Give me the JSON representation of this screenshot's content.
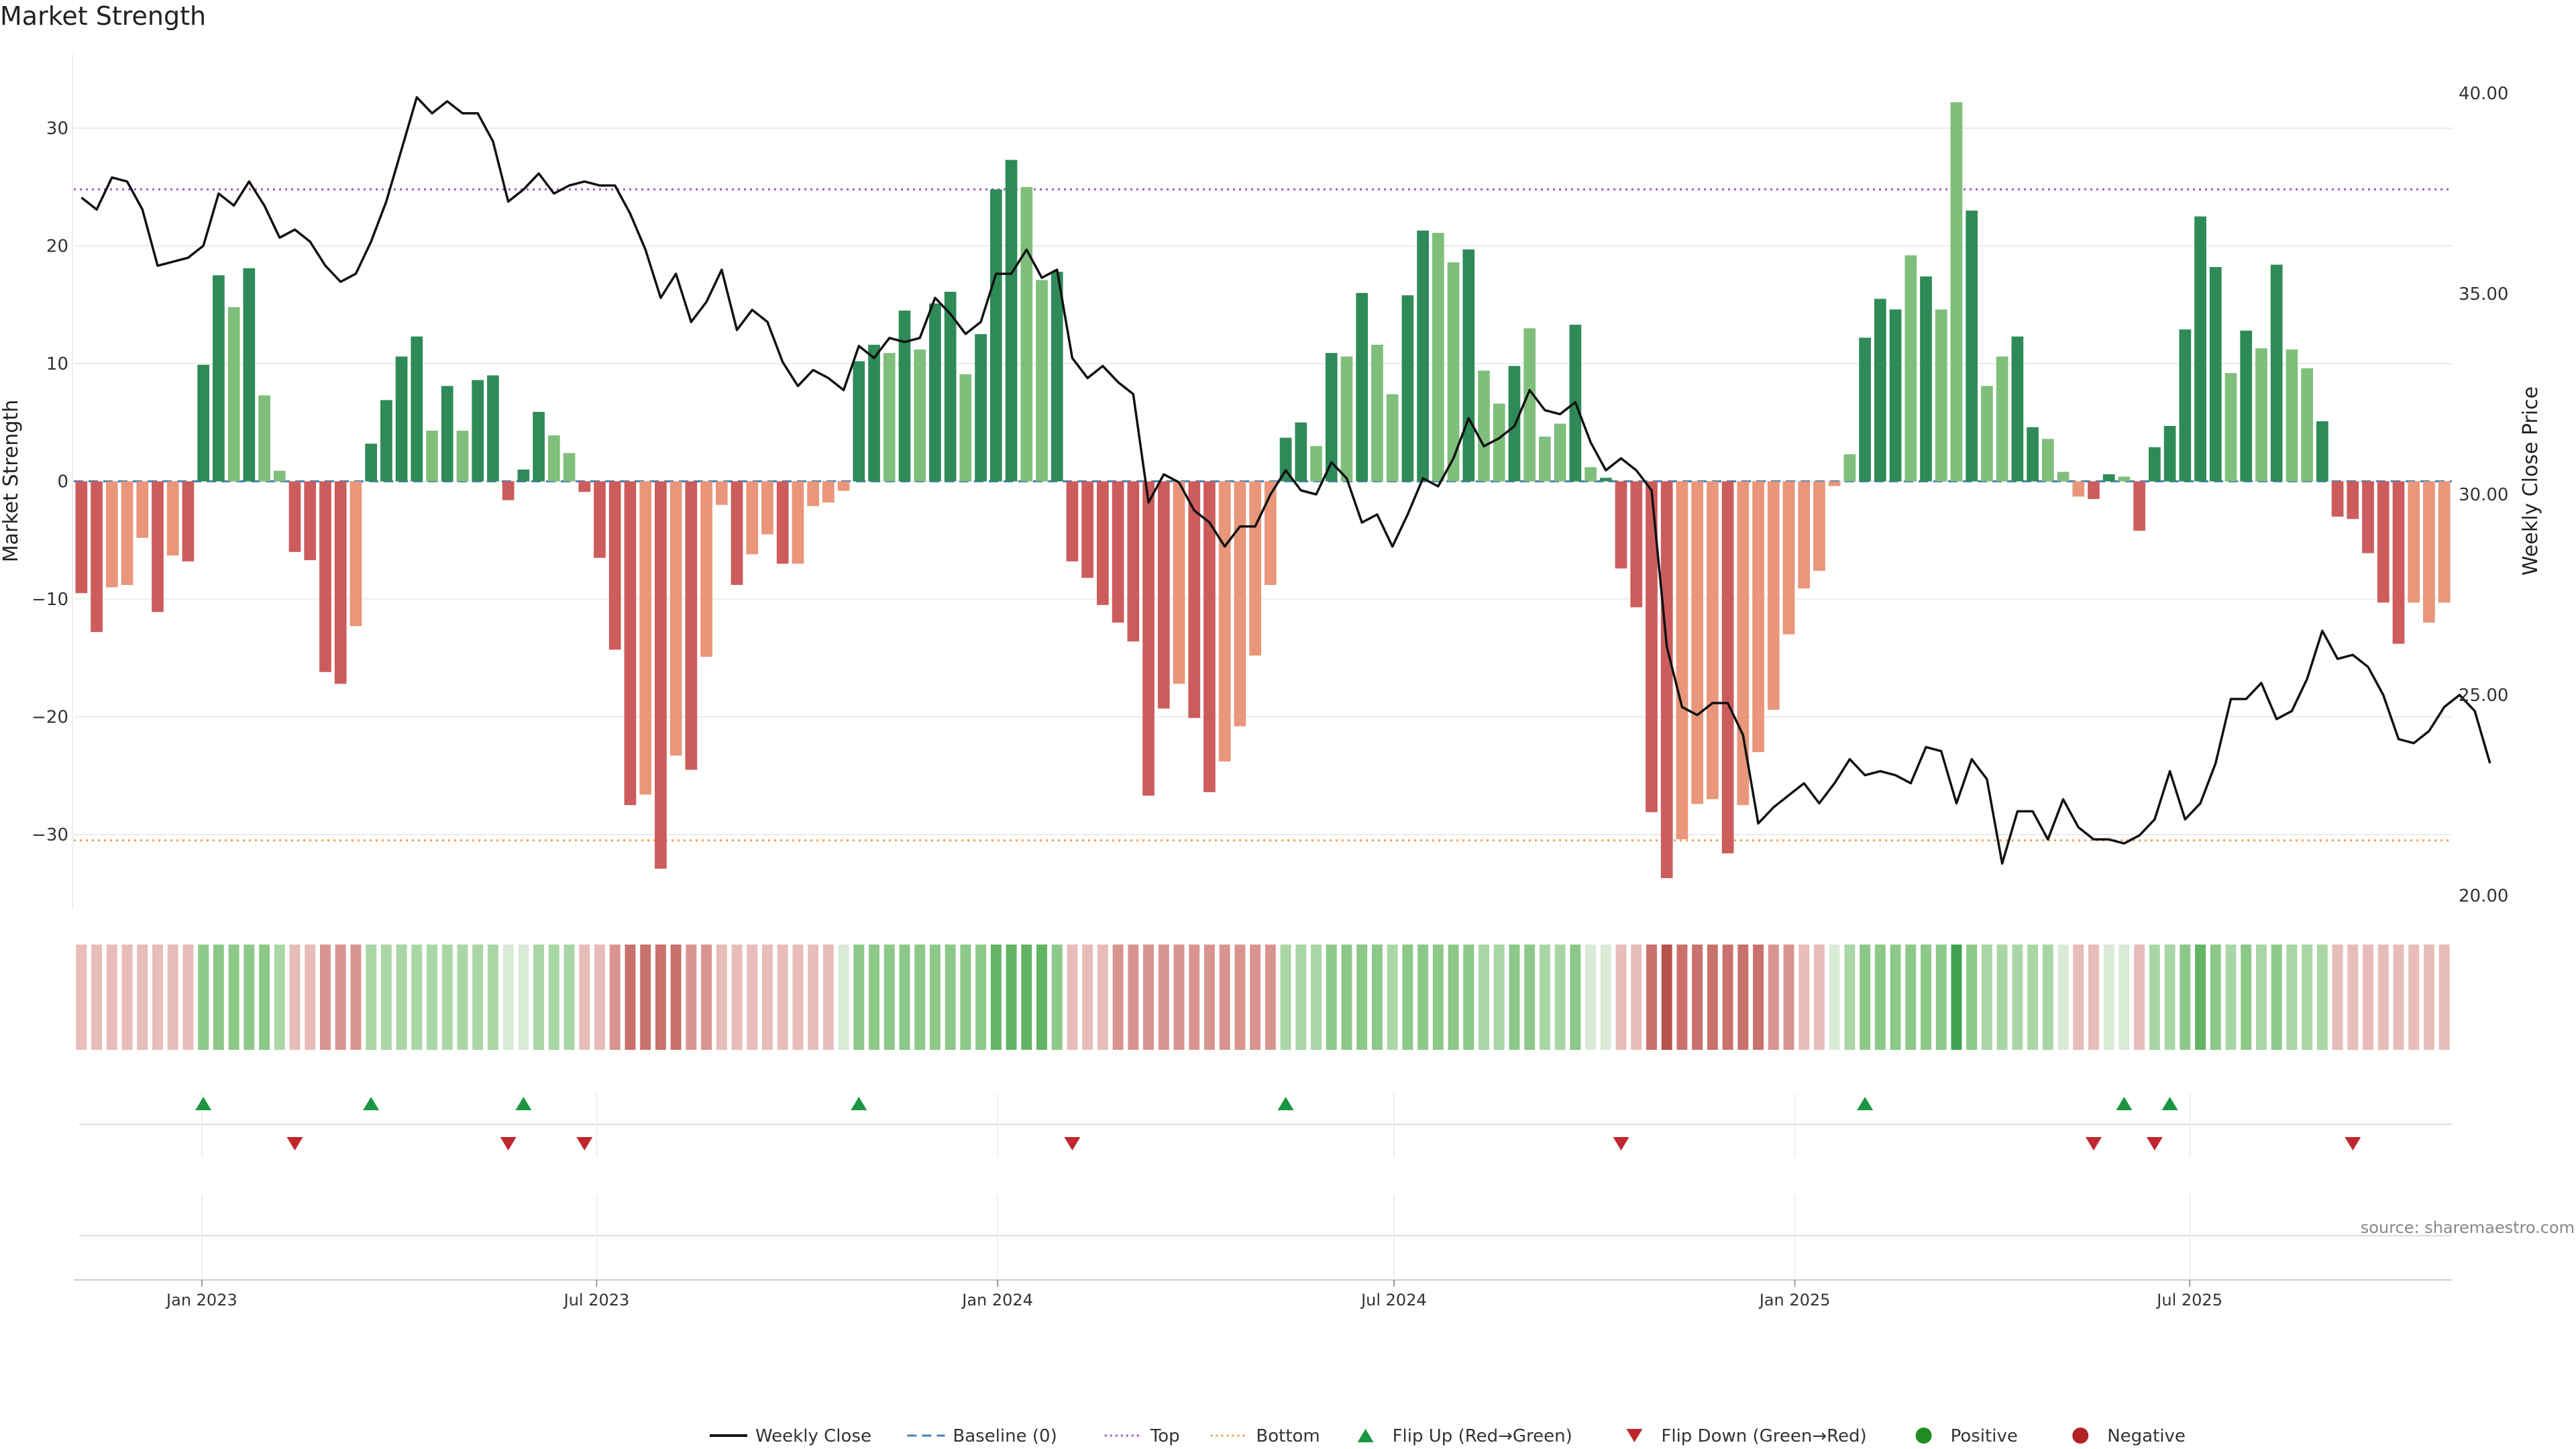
{
  "title": "Market Strength",
  "source_note": "source: sharemaestro.com",
  "colors": {
    "pos_dark": "#2e8b57",
    "pos_light": "#7fbf7b",
    "neg_dark": "#cd5c5c",
    "neg_light": "#e9967a",
    "line": "#111111",
    "top_line": "#9b59b6",
    "bottom_line": "#f0a04b",
    "baseline": "#4682b4",
    "flip_up": "#1a9641",
    "flip_down": "#c0272d",
    "grid": "#ebebeb",
    "axis_text": "#333333"
  },
  "chart_data": {
    "type": "bar",
    "title": "Market Strength",
    "ylabel": "Market Strength",
    "y2label": "Weekly Close Price",
    "ylim": [
      -36.5,
      36.5
    ],
    "y2lim": [
      19.6,
      41.0
    ],
    "yticks": [
      -30,
      -20,
      -10,
      0,
      10,
      20,
      30
    ],
    "y2ticks": [
      20.0,
      25.0,
      30.0,
      35.0,
      40.0
    ],
    "top_level": 24.8,
    "bottom_level": -30.5,
    "x_tick_labels": [
      "Jan 2023",
      "Jul 2023",
      "Jan 2024",
      "Jul 2024",
      "Jan 2025",
      "Jul 2025"
    ],
    "x_tick_weeks": [
      8.4,
      34.3,
      60.6,
      86.6,
      112.9,
      138.8
    ],
    "bar_values": [
      -9.5,
      -12.8,
      -9.0,
      -8.8,
      -4.8,
      -11.1,
      -6.3,
      -6.8,
      9.9,
      17.5,
      14.8,
      18.1,
      7.3,
      0.9,
      -6.0,
      -6.7,
      -16.2,
      -17.2,
      -12.3,
      3.2,
      6.9,
      10.6,
      12.3,
      4.3,
      8.1,
      4.3,
      8.6,
      9.0,
      -1.6,
      1.0,
      5.9,
      3.9,
      2.4,
      -0.9,
      -6.5,
      -14.3,
      -27.5,
      -26.6,
      -32.9,
      -23.3,
      -24.5,
      -14.9,
      -2.0,
      -8.8,
      -6.2,
      -4.5,
      -7.0,
      -7.0,
      -2.1,
      -1.8,
      -0.8,
      10.2,
      11.6,
      10.9,
      14.5,
      11.2,
      15.1,
      16.1,
      9.1,
      12.5,
      24.8,
      27.3,
      25.0,
      17.1,
      17.8,
      -6.8,
      -8.2,
      -10.5,
      -12.0,
      -13.6,
      -26.7,
      -19.3,
      -17.2,
      -20.1,
      -26.4,
      -23.8,
      -20.8,
      -14.8,
      -8.8,
      3.7,
      5.0,
      3.0,
      10.9,
      10.6,
      16.0,
      11.6,
      7.4,
      15.8,
      21.3,
      21.1,
      18.6,
      19.7,
      9.4,
      6.6,
      9.8,
      13.0,
      3.8,
      4.9,
      13.3,
      1.2,
      0.3,
      -7.4,
      -10.7,
      -28.1,
      -33.7,
      -30.4,
      -27.4,
      -27.0,
      -31.6,
      -27.5,
      -23.0,
      -19.4,
      -13.0,
      -9.1,
      -7.6,
      -0.4,
      2.3,
      12.2,
      15.5,
      14.6,
      19.2,
      17.4,
      14.6,
      32.2,
      23.0,
      8.1,
      10.6,
      12.3,
      4.6,
      3.6,
      0.8,
      -1.3,
      -1.5,
      0.6,
      0.4,
      -4.2,
      2.9,
      4.7,
      12.9,
      22.5,
      18.2,
      9.2,
      12.8,
      11.3,
      18.4,
      11.2,
      9.6,
      5.1,
      -3.0,
      -3.2,
      -6.1,
      -10.3,
      -13.8,
      -10.3,
      -12.0,
      -10.3
    ],
    "bar_shades": [
      "d",
      "d",
      "l",
      "l",
      "l",
      "d",
      "l",
      "d",
      "d",
      "d",
      "l",
      "d",
      "l",
      "l",
      "d",
      "d",
      "d",
      "d",
      "l",
      "d",
      "d",
      "d",
      "d",
      "l",
      "d",
      "l",
      "d",
      "d",
      "d",
      "d",
      "d",
      "l",
      "l",
      "d",
      "d",
      "d",
      "d",
      "l",
      "d",
      "l",
      "d",
      "l",
      "l",
      "d",
      "l",
      "l",
      "d",
      "l",
      "l",
      "l",
      "l",
      "d",
      "d",
      "l",
      "d",
      "l",
      "d",
      "d",
      "l",
      "d",
      "d",
      "d",
      "l",
      "l",
      "d",
      "d",
      "d",
      "d",
      "d",
      "d",
      "d",
      "d",
      "l",
      "d",
      "d",
      "l",
      "l",
      "l",
      "l",
      "d",
      "d",
      "l",
      "d",
      "l",
      "d",
      "l",
      "l",
      "d",
      "d",
      "l",
      "l",
      "d",
      "l",
      "l",
      "d",
      "l",
      "l",
      "l",
      "d",
      "l",
      "d",
      "d",
      "d",
      "d",
      "d",
      "l",
      "l",
      "l",
      "d",
      "l",
      "l",
      "l",
      "l",
      "l",
      "l",
      "l",
      "l",
      "d",
      "d",
      "d",
      "l",
      "d",
      "l",
      "l",
      "d",
      "l",
      "l",
      "d",
      "d",
      "l",
      "l",
      "l",
      "d",
      "d",
      "l",
      "d",
      "d",
      "d",
      "d",
      "d",
      "d",
      "l",
      "d",
      "l",
      "d",
      "l",
      "l",
      "d",
      "d",
      "d",
      "d",
      "d",
      "d",
      "l"
    ],
    "close_series": {
      "name": "Weekly Close",
      "values": [
        37.4,
        37.1,
        37.9,
        37.8,
        37.1,
        35.7,
        35.8,
        35.9,
        36.2,
        37.5,
        37.2,
        37.8,
        37.2,
        36.4,
        36.6,
        36.3,
        35.7,
        35.3,
        35.5,
        36.3,
        37.3,
        38.6,
        39.9,
        39.5,
        39.8,
        39.5,
        39.5,
        38.8,
        37.3,
        37.6,
        38.0,
        37.5,
        37.7,
        37.8,
        37.7,
        37.7,
        37.0,
        36.1,
        34.9,
        35.5,
        34.3,
        34.8,
        35.6,
        34.1,
        34.6,
        34.3,
        33.3,
        32.7,
        33.1,
        32.9,
        32.6,
        33.7,
        33.4,
        33.9,
        33.8,
        33.9,
        34.9,
        34.5,
        34.0,
        34.3,
        35.5,
        35.5,
        36.1,
        35.4,
        35.6,
        33.4,
        32.9,
        33.2,
        32.8,
        32.5,
        29.8,
        30.5,
        30.3,
        29.6,
        29.3,
        28.7,
        29.2,
        29.2,
        30.0,
        30.6,
        30.1,
        30.0,
        30.8,
        30.4,
        29.3,
        29.5,
        28.7,
        29.5,
        30.4,
        30.2,
        30.9,
        31.9,
        31.2,
        31.4,
        31.7,
        32.6,
        32.1,
        32.0,
        32.3,
        31.3,
        30.6,
        30.9,
        30.6,
        30.1,
        26.2,
        24.7,
        24.5,
        24.8,
        24.8,
        24.0,
        21.8,
        22.2,
        22.5,
        22.8,
        22.3,
        22.8,
        23.4,
        23.0,
        23.1,
        23.0,
        22.8,
        23.7,
        23.6,
        22.3,
        23.4,
        22.9,
        20.8,
        22.1,
        22.1,
        21.4,
        22.4,
        21.7,
        21.4,
        21.4,
        21.3,
        21.5,
        21.9,
        23.1,
        21.9,
        22.3,
        23.3,
        24.9,
        24.9,
        25.3,
        24.4,
        24.6,
        25.4,
        26.6,
        25.9,
        26.0,
        25.7,
        25.0,
        23.9,
        23.8,
        24.1,
        24.7,
        25.0,
        24.6,
        23.3
      ]
    },
    "heat_strip_scores": [
      -1,
      -1,
      -1,
      -1,
      -1,
      -1,
      -1,
      -1,
      2,
      2,
      2,
      2,
      2,
      1,
      -1,
      -1,
      -2,
      -2,
      -2,
      1,
      1,
      1,
      1,
      1,
      1,
      1,
      1,
      1,
      0,
      0,
      1,
      1,
      1,
      -1,
      -1,
      -2,
      -3,
      -3,
      -3,
      -3,
      -2,
      -2,
      -1,
      -1,
      -1,
      -1,
      -1,
      -1,
      -1,
      -1,
      0,
      2,
      2,
      2,
      2,
      2,
      2,
      2,
      2,
      2,
      3,
      3,
      3,
      3,
      2,
      -1,
      -1,
      -1,
      -2,
      -2,
      -2,
      -2,
      -2,
      -2,
      -2,
      -2,
      -2,
      -2,
      -2,
      1,
      1,
      1,
      2,
      2,
      2,
      2,
      1,
      2,
      2,
      2,
      2,
      2,
      1,
      1,
      2,
      2,
      1,
      1,
      2,
      0,
      0,
      -1,
      -1,
      -3,
      -4,
      -3,
      -3,
      -3,
      -3,
      -3,
      -3,
      -2,
      -2,
      -1,
      -1,
      0,
      1,
      2,
      2,
      2,
      2,
      2,
      2,
      4,
      2,
      1,
      1,
      1,
      1,
      1,
      0,
      -1,
      -1,
      0,
      0,
      -1,
      1,
      1,
      2,
      3,
      2,
      1,
      2,
      1,
      2,
      1,
      1,
      1,
      -1,
      -1,
      -1,
      -1,
      -1,
      -1,
      -1,
      -1
    ],
    "flip_up_weeks": [
      8,
      19,
      29,
      51,
      79,
      117,
      134,
      137
    ],
    "flip_down_weeks": [
      14,
      28,
      33,
      65,
      101,
      132,
      136,
      149
    ]
  },
  "legend": [
    {
      "label": "Weekly Close",
      "kind": "line",
      "color": "#111111"
    },
    {
      "label": "Baseline (0)",
      "kind": "dash",
      "color": "#4682b4"
    },
    {
      "label": "Top",
      "kind": "dot",
      "color": "#9b59b6"
    },
    {
      "label": "Bottom",
      "kind": "dot",
      "color": "#f0a04b"
    },
    {
      "label": "Flip Up (Red→Green)",
      "kind": "tri-up",
      "color": "#1a9641"
    },
    {
      "label": "Flip Down (Green→Red)",
      "kind": "tri-down",
      "color": "#c0272d"
    },
    {
      "label": "Positive",
      "kind": "dot-marker",
      "color": "#228b22"
    },
    {
      "label": "Negative",
      "kind": "dot-marker",
      "color": "#b22222"
    }
  ]
}
